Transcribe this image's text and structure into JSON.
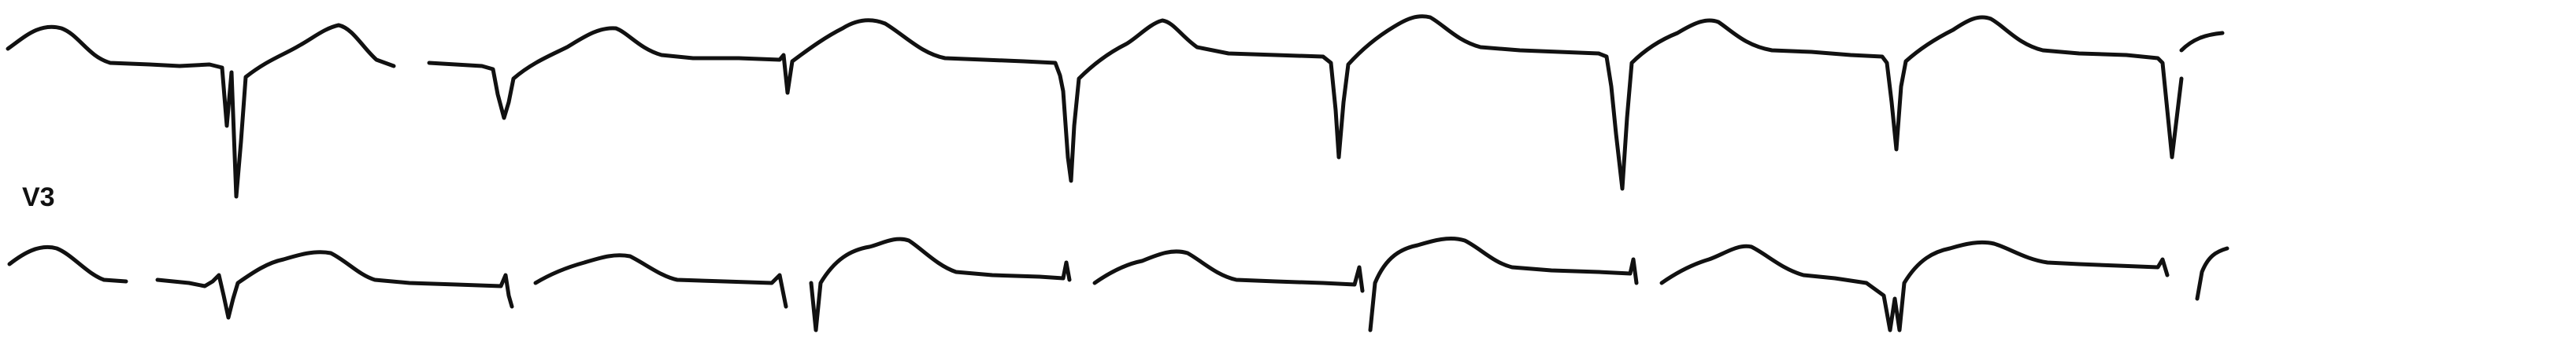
{
  "strip": {
    "background_color": "#ffffff",
    "trace_color": "#111111",
    "rows": [
      {
        "name": "upper-rhythm-row",
        "lead_label": ""
      },
      {
        "name": "lower-rhythm-row",
        "lead_label": "V3"
      }
    ]
  }
}
